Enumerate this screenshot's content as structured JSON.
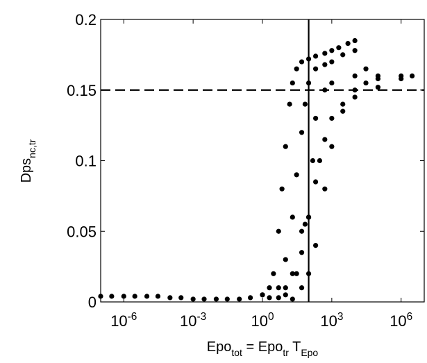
{
  "chart_data": {
    "type": "scatter",
    "xlabel": "Epo_{tot} = Epo_{tr} T_{Epo}",
    "ylabel": "Dps_{nc,tr}",
    "xscale": "log",
    "xlim": [
      1e-07,
      10000000.0
    ],
    "ylim": [
      0,
      0.2
    ],
    "xticks": [
      {
        "value": 1e-06,
        "label": "10^{-6}"
      },
      {
        "value": 0.001,
        "label": "10^{-3}"
      },
      {
        "value": 1,
        "label": "10^{0}"
      },
      {
        "value": 1000.0,
        "label": "10^{3}"
      },
      {
        "value": 1000000.0,
        "label": "10^{6}"
      }
    ],
    "yticks": [
      0,
      0.05,
      0.1,
      0.15,
      0.2
    ],
    "color": "#000000",
    "vline": 100,
    "hline": 0.15,
    "series": [
      {
        "x": [
          1e-07,
          3e-07,
          1e-06,
          3e-06,
          1e-05,
          3e-05,
          0.0001,
          0.0003,
          0.001,
          0.003,
          0.01,
          0.03,
          0.1,
          0.3,
          1
        ],
        "y": [
          0.004,
          0.004,
          0.004,
          0.004,
          0.004,
          0.004,
          0.003,
          0.003,
          0.002,
          0.002,
          0.002,
          0.002,
          0.002,
          0.003,
          0.005
        ]
      },
      {
        "x": [
          1,
          2,
          3,
          5,
          7,
          10,
          15,
          20,
          30,
          50,
          100,
          200,
          500,
          1000,
          2000,
          5000,
          10000
        ],
        "y": [
          0.005,
          0.01,
          0.02,
          0.05,
          0.08,
          0.11,
          0.14,
          0.155,
          0.165,
          0.17,
          0.172,
          0.174,
          0.176,
          0.178,
          0.18,
          0.183,
          0.185
        ]
      },
      {
        "x": [
          2,
          5,
          10,
          20,
          30,
          50,
          70,
          100,
          200,
          500,
          1000,
          3000,
          10000,
          30000
        ],
        "y": [
          0.003,
          0.01,
          0.03,
          0.06,
          0.09,
          0.12,
          0.14,
          0.155,
          0.165,
          0.168,
          0.17,
          0.175,
          0.178,
          0.165
        ]
      },
      {
        "x": [
          5,
          10,
          20,
          50,
          70,
          100,
          150,
          200,
          500,
          1000,
          10000,
          100000,
          1000000,
          3000000
        ],
        "y": [
          0.003,
          0.01,
          0.02,
          0.05,
          0.055,
          0.06,
          0.1,
          0.13,
          0.15,
          0.155,
          0.16,
          0.16,
          0.16,
          0.16
        ]
      },
      {
        "x": [
          10,
          30,
          50,
          100,
          200,
          300,
          500,
          1000,
          3000,
          10000,
          100000,
          1000000
        ],
        "y": [
          0.005,
          0.02,
          0.035,
          0.06,
          0.085,
          0.1,
          0.115,
          0.13,
          0.14,
          0.145,
          0.152,
          0.158
        ]
      },
      {
        "x": [
          20,
          50,
          100,
          200,
          500,
          1000,
          3000,
          10000,
          30000,
          100000
        ],
        "y": [
          0.002,
          0.01,
          0.02,
          0.04,
          0.08,
          0.11,
          0.135,
          0.15,
          0.155,
          0.158
        ]
      }
    ]
  }
}
